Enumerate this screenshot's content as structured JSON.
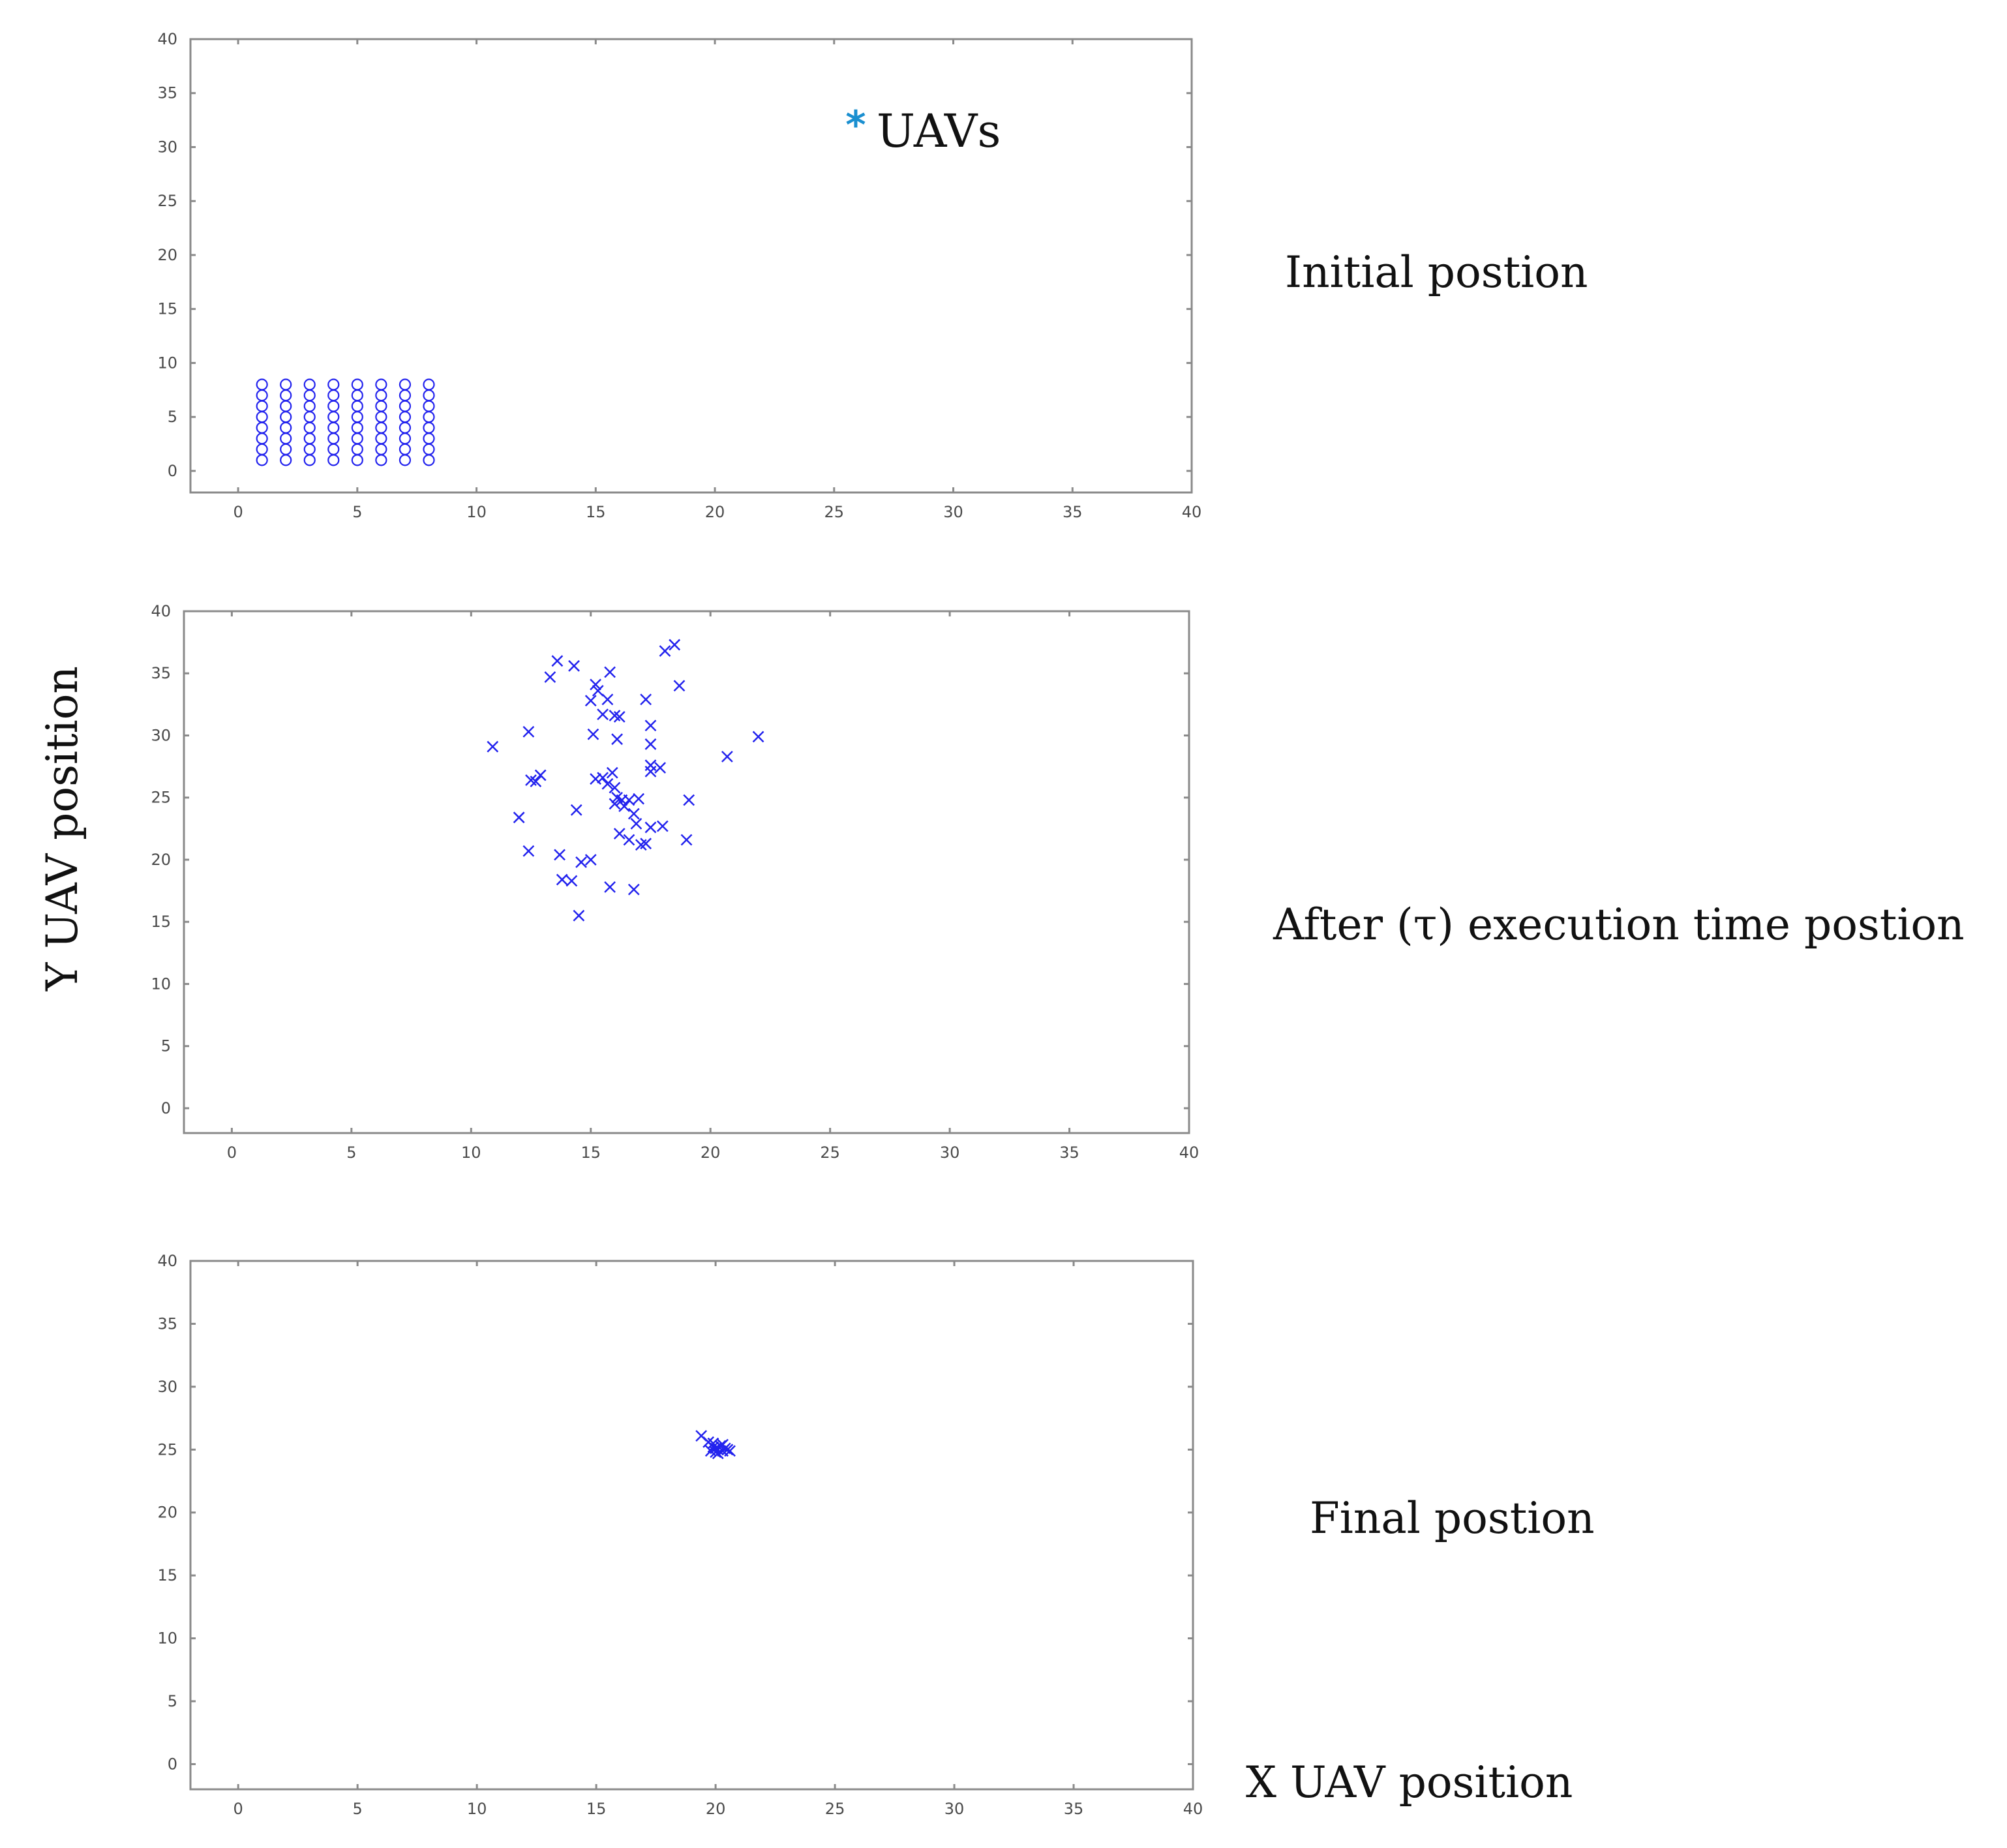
{
  "figure": {
    "ylabel": "Y UAV position",
    "xlabel": "X UAV position",
    "legend": {
      "symbol": "*",
      "label": "UAVs"
    },
    "captions": [
      "Initial postion",
      "After (τ) execution time postion",
      "Final postion"
    ]
  },
  "colors": {
    "marker": "#2222ee",
    "legend_marker": "#1a8fd0",
    "axis": "#8a8a8a",
    "text": "#111111"
  },
  "chart_data": [
    {
      "type": "scatter",
      "title": "Initial postion",
      "marker": "o",
      "xlim": [
        -2,
        40
      ],
      "ylim": [
        -2,
        40
      ],
      "xticks": [
        0,
        5,
        10,
        15,
        20,
        25,
        30,
        35,
        40
      ],
      "yticks": [
        0,
        5,
        10,
        15,
        20,
        25,
        30,
        35,
        40
      ],
      "xtick_labels": [
        "0",
        "5",
        "10",
        "15",
        "20",
        "25",
        "30",
        "35",
        "40"
      ],
      "ytick_labels": [
        "0",
        "5",
        "10",
        "15",
        "20",
        "25",
        "30",
        "35",
        "40"
      ],
      "points": [
        [
          1,
          1
        ],
        [
          1,
          2
        ],
        [
          1,
          3
        ],
        [
          1,
          4
        ],
        [
          1,
          5
        ],
        [
          1,
          6
        ],
        [
          1,
          7
        ],
        [
          1,
          8
        ],
        [
          2,
          1
        ],
        [
          2,
          2
        ],
        [
          2,
          3
        ],
        [
          2,
          4
        ],
        [
          2,
          5
        ],
        [
          2,
          6
        ],
        [
          2,
          7
        ],
        [
          2,
          8
        ],
        [
          3,
          1
        ],
        [
          3,
          2
        ],
        [
          3,
          3
        ],
        [
          3,
          4
        ],
        [
          3,
          5
        ],
        [
          3,
          6
        ],
        [
          3,
          7
        ],
        [
          3,
          8
        ],
        [
          4,
          1
        ],
        [
          4,
          2
        ],
        [
          4,
          3
        ],
        [
          4,
          4
        ],
        [
          4,
          5
        ],
        [
          4,
          6
        ],
        [
          4,
          7
        ],
        [
          4,
          8
        ],
        [
          5,
          1
        ],
        [
          5,
          2
        ],
        [
          5,
          3
        ],
        [
          5,
          4
        ],
        [
          5,
          5
        ],
        [
          5,
          6
        ],
        [
          5,
          7
        ],
        [
          5,
          8
        ],
        [
          6,
          1
        ],
        [
          6,
          2
        ],
        [
          6,
          3
        ],
        [
          6,
          4
        ],
        [
          6,
          5
        ],
        [
          6,
          6
        ],
        [
          6,
          7
        ],
        [
          6,
          8
        ],
        [
          7,
          1
        ],
        [
          7,
          2
        ],
        [
          7,
          3
        ],
        [
          7,
          4
        ],
        [
          7,
          5
        ],
        [
          7,
          6
        ],
        [
          7,
          7
        ],
        [
          7,
          8
        ],
        [
          8,
          1
        ],
        [
          8,
          2
        ],
        [
          8,
          3
        ],
        [
          8,
          4
        ],
        [
          8,
          5
        ],
        [
          8,
          6
        ],
        [
          8,
          7
        ],
        [
          8,
          8
        ]
      ]
    },
    {
      "type": "scatter",
      "title": "After (τ) execution time postion",
      "marker": "x",
      "xlim": [
        -2,
        40
      ],
      "ylim": [
        -2,
        40
      ],
      "xticks": [
        0,
        5,
        10,
        15,
        20,
        25,
        30,
        35,
        40
      ],
      "yticks": [
        0,
        5,
        10,
        15,
        20,
        25,
        30,
        35,
        40
      ],
      "xtick_labels": [
        "0",
        "5",
        "10",
        "15",
        "20",
        "25",
        "30",
        "35",
        "40"
      ],
      "ytick_labels": [
        "0",
        "5",
        "10",
        "15",
        "20",
        "25",
        "30",
        "35",
        "40"
      ],
      "points": [
        [
          13.6,
          36.0
        ],
        [
          14.3,
          35.6
        ],
        [
          15.8,
          35.1
        ],
        [
          18.5,
          37.3
        ],
        [
          18.1,
          36.8
        ],
        [
          13.3,
          34.7
        ],
        [
          15.2,
          34.1
        ],
        [
          18.7,
          34.0
        ],
        [
          15.3,
          33.6
        ],
        [
          15.0,
          32.8
        ],
        [
          15.7,
          32.9
        ],
        [
          17.3,
          32.9
        ],
        [
          16.0,
          31.6
        ],
        [
          16.2,
          31.5
        ],
        [
          15.5,
          31.7
        ],
        [
          12.4,
          30.3
        ],
        [
          15.1,
          30.1
        ],
        [
          16.1,
          29.7
        ],
        [
          17.5,
          30.8
        ],
        [
          17.5,
          29.3
        ],
        [
          10.9,
          29.1
        ],
        [
          22.0,
          29.9
        ],
        [
          20.7,
          28.3
        ],
        [
          17.5,
          27.6
        ],
        [
          17.9,
          27.4
        ],
        [
          17.5,
          27.1
        ],
        [
          15.9,
          27.0
        ],
        [
          15.5,
          26.6
        ],
        [
          15.2,
          26.5
        ],
        [
          12.5,
          26.4
        ],
        [
          12.9,
          26.8
        ],
        [
          12.7,
          26.3
        ],
        [
          16.0,
          25.8
        ],
        [
          15.7,
          26.1
        ],
        [
          16.1,
          25.0
        ],
        [
          16.3,
          24.8
        ],
        [
          16.6,
          24.8
        ],
        [
          17.0,
          24.9
        ],
        [
          16.0,
          24.5
        ],
        [
          16.4,
          24.3
        ],
        [
          19.1,
          24.8
        ],
        [
          14.4,
          24.0
        ],
        [
          12.0,
          23.4
        ],
        [
          16.8,
          23.7
        ],
        [
          16.9,
          22.9
        ],
        [
          17.5,
          22.6
        ],
        [
          18.0,
          22.7
        ],
        [
          16.2,
          22.1
        ],
        [
          16.6,
          21.6
        ],
        [
          17.1,
          21.2
        ],
        [
          17.3,
          21.3
        ],
        [
          19.0,
          21.6
        ],
        [
          12.4,
          20.7
        ],
        [
          13.7,
          20.4
        ],
        [
          14.6,
          19.8
        ],
        [
          15.0,
          20.0
        ],
        [
          13.8,
          18.4
        ],
        [
          14.2,
          18.3
        ],
        [
          15.8,
          17.8
        ],
        [
          16.8,
          17.6
        ],
        [
          14.5,
          15.5
        ]
      ]
    },
    {
      "type": "scatter",
      "title": "Final postion",
      "marker": "x",
      "xlim": [
        -2,
        40
      ],
      "ylim": [
        -2,
        40
      ],
      "xticks": [
        0,
        5,
        10,
        15,
        20,
        25,
        30,
        35,
        40
      ],
      "yticks": [
        0,
        5,
        10,
        15,
        20,
        25,
        30,
        35,
        40
      ],
      "xtick_labels": [
        "0",
        "5",
        "10",
        "15",
        "20",
        "25",
        "30",
        "35",
        "40"
      ],
      "ytick_labels": [
        "0",
        "5",
        "10",
        "15",
        "20",
        "25",
        "30",
        "35",
        "40"
      ],
      "points": [
        [
          19.4,
          26.1
        ],
        [
          19.7,
          25.6
        ],
        [
          19.9,
          25.2
        ],
        [
          20.1,
          25.0
        ],
        [
          20.3,
          24.9
        ],
        [
          20.0,
          24.8
        ],
        [
          20.4,
          25.1
        ],
        [
          19.8,
          24.9
        ],
        [
          20.2,
          25.3
        ],
        [
          20.5,
          25.0
        ],
        [
          19.9,
          25.5
        ],
        [
          20.1,
          24.7
        ],
        [
          20.3,
          25.4
        ],
        [
          20.0,
          25.1
        ],
        [
          20.6,
          24.9
        ]
      ]
    }
  ]
}
